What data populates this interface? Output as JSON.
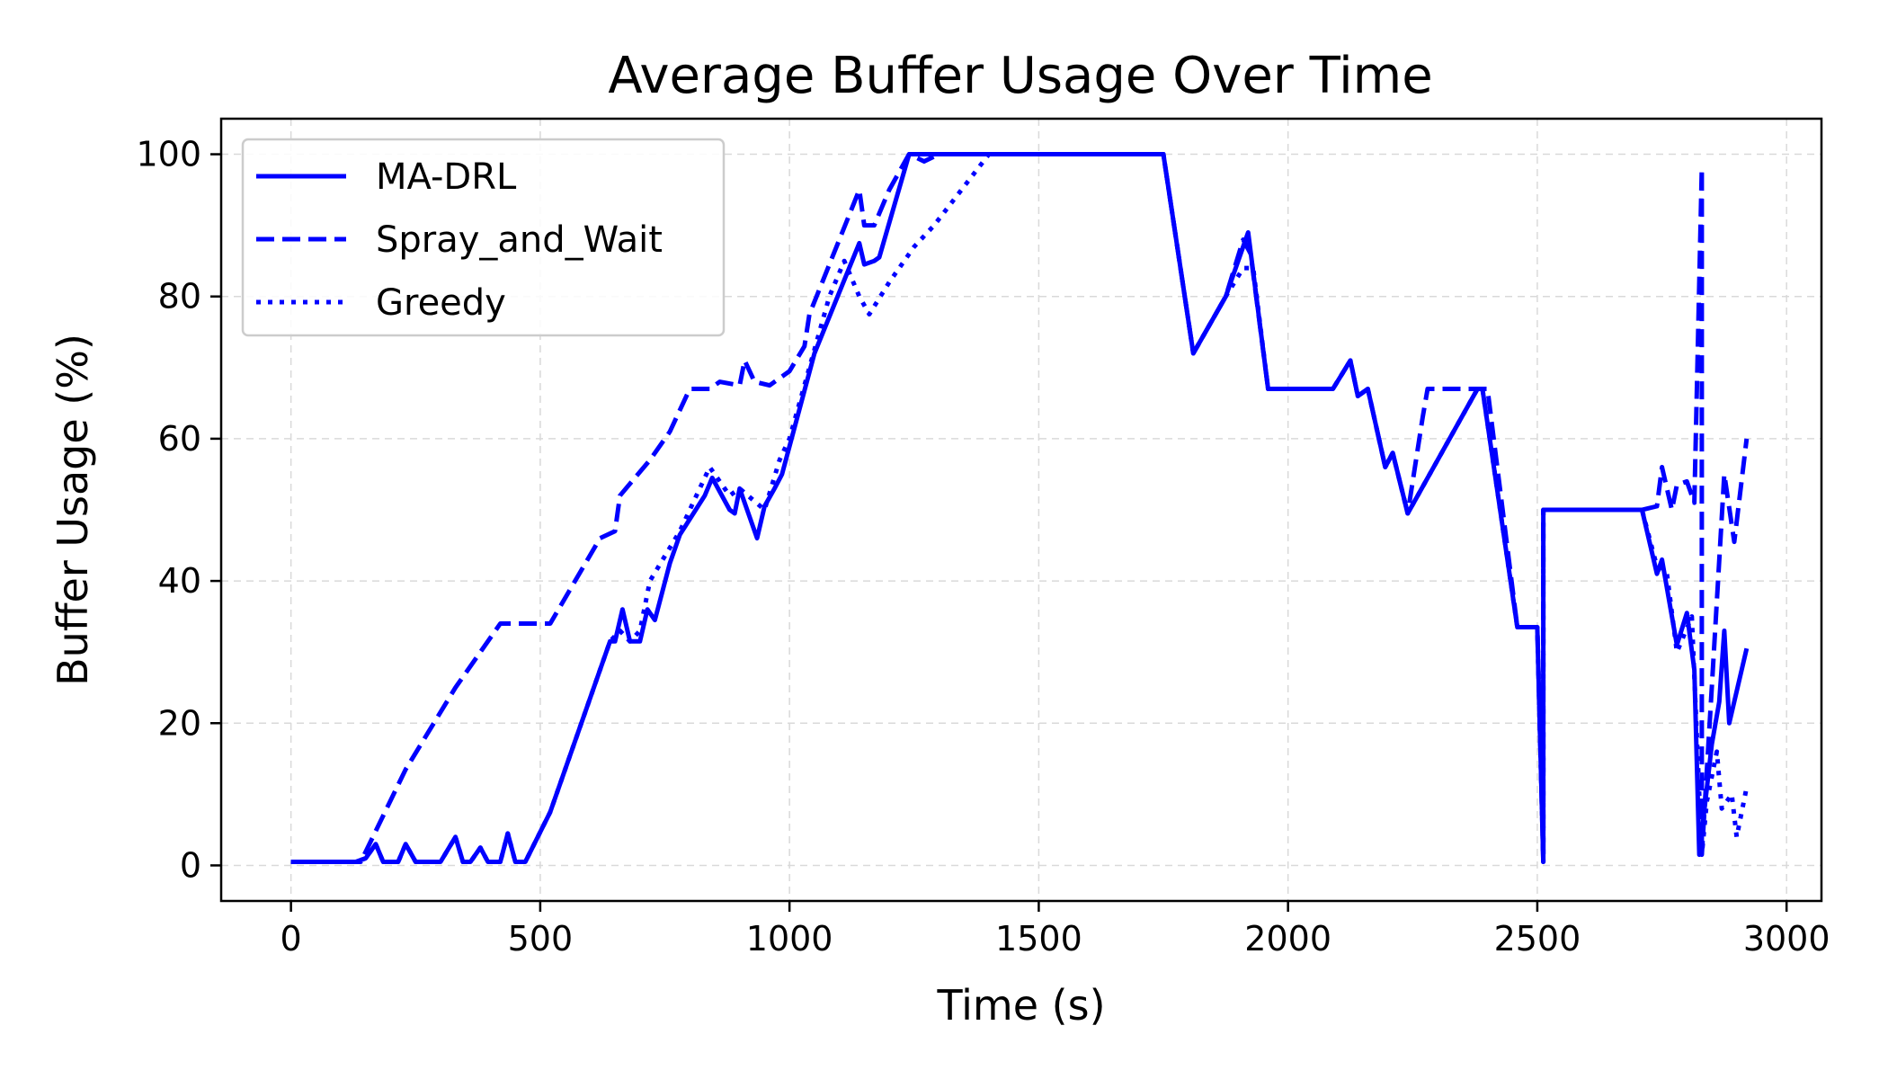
{
  "chart_data": {
    "type": "line",
    "title": "Average Buffer Usage Over Time",
    "xlabel": "Time (s)",
    "ylabel": "Buffer Usage (%)",
    "xlim": [
      -140,
      3070
    ],
    "ylim": [
      -5,
      105
    ],
    "xticks": [
      0,
      500,
      1000,
      1500,
      2000,
      2500,
      3000
    ],
    "yticks": [
      0,
      20,
      40,
      60,
      80,
      100
    ],
    "grid": true,
    "legend_position": "top-left",
    "color": "#0000ff",
    "series": [
      {
        "name": "MA-DRL",
        "style": "solid",
        "points": [
          [
            0,
            0.5
          ],
          [
            130,
            0.5
          ],
          [
            150,
            1
          ],
          [
            170,
            3
          ],
          [
            185,
            0.5
          ],
          [
            215,
            0.5
          ],
          [
            230,
            3
          ],
          [
            250,
            0.5
          ],
          [
            300,
            0.5
          ],
          [
            330,
            4
          ],
          [
            345,
            0.5
          ],
          [
            360,
            0.5
          ],
          [
            380,
            2.5
          ],
          [
            395,
            0.5
          ],
          [
            420,
            0.5
          ],
          [
            435,
            4.5
          ],
          [
            450,
            0.5
          ],
          [
            470,
            0.5
          ],
          [
            520,
            7.5
          ],
          [
            640,
            31.5
          ],
          [
            650,
            31.5
          ],
          [
            665,
            36
          ],
          [
            680,
            31.5
          ],
          [
            700,
            31.5
          ],
          [
            715,
            36
          ],
          [
            730,
            34.5
          ],
          [
            760,
            42.5
          ],
          [
            780,
            46.5
          ],
          [
            830,
            52
          ],
          [
            845,
            54.5
          ],
          [
            880,
            50
          ],
          [
            890,
            49.5
          ],
          [
            900,
            53
          ],
          [
            920,
            49
          ],
          [
            935,
            46
          ],
          [
            950,
            50.5
          ],
          [
            970,
            53
          ],
          [
            985,
            55
          ],
          [
            1050,
            72
          ],
          [
            1140,
            87.5
          ],
          [
            1150,
            84.5
          ],
          [
            1170,
            85
          ],
          [
            1180,
            85.5
          ],
          [
            1240,
            100
          ],
          [
            1750,
            100
          ],
          [
            1810,
            72
          ],
          [
            1875,
            80
          ],
          [
            1920,
            89
          ],
          [
            1940,
            78
          ],
          [
            1960,
            67
          ],
          [
            2090,
            67
          ],
          [
            2125,
            71
          ],
          [
            2140,
            66
          ],
          [
            2160,
            67
          ],
          [
            2195,
            56
          ],
          [
            2210,
            58
          ],
          [
            2240,
            49.5
          ],
          [
            2380,
            67
          ],
          [
            2390,
            67
          ],
          [
            2460,
            33.5
          ],
          [
            2500,
            33.5
          ],
          [
            2512,
            0.5
          ],
          [
            2512,
            50
          ],
          [
            2710,
            50
          ],
          [
            2740,
            41
          ],
          [
            2750,
            43
          ],
          [
            2780,
            31
          ],
          [
            2800,
            35.5
          ],
          [
            2815,
            27.5
          ],
          [
            2825,
            1.5
          ],
          [
            2850,
            17
          ],
          [
            2865,
            23
          ],
          [
            2875,
            33
          ],
          [
            2885,
            20
          ],
          [
            2920,
            30.5
          ]
        ]
      },
      {
        "name": "Spray_and_Wait",
        "style": "dashed",
        "points": [
          [
            0,
            0.5
          ],
          [
            140,
            0.5
          ],
          [
            230,
            13.5
          ],
          [
            330,
            25
          ],
          [
            420,
            34
          ],
          [
            520,
            34
          ],
          [
            620,
            46
          ],
          [
            650,
            47
          ],
          [
            660,
            52
          ],
          [
            720,
            57
          ],
          [
            760,
            61
          ],
          [
            800,
            67
          ],
          [
            840,
            67
          ],
          [
            860,
            68
          ],
          [
            900,
            67.5
          ],
          [
            910,
            71
          ],
          [
            930,
            68
          ],
          [
            960,
            67.5
          ],
          [
            1000,
            69.5
          ],
          [
            1030,
            73
          ],
          [
            1040,
            77.5
          ],
          [
            1100,
            88
          ],
          [
            1140,
            95
          ],
          [
            1150,
            90
          ],
          [
            1170,
            90
          ],
          [
            1200,
            95
          ],
          [
            1240,
            100
          ],
          [
            1270,
            99
          ],
          [
            1300,
            100
          ],
          [
            1750,
            100
          ],
          [
            1810,
            72
          ],
          [
            1875,
            80
          ],
          [
            1910,
            88
          ],
          [
            1925,
            86
          ],
          [
            1960,
            67
          ],
          [
            2090,
            67
          ],
          [
            2125,
            71
          ],
          [
            2140,
            66
          ],
          [
            2160,
            67
          ],
          [
            2195,
            56
          ],
          [
            2210,
            58
          ],
          [
            2240,
            49.5
          ],
          [
            2270,
            63
          ],
          [
            2280,
            67
          ],
          [
            2400,
            67
          ],
          [
            2460,
            33.5
          ],
          [
            2500,
            33.5
          ],
          [
            2512,
            0.5
          ],
          [
            2512,
            50
          ],
          [
            2710,
            50
          ],
          [
            2740,
            50.5
          ],
          [
            2750,
            56
          ],
          [
            2770,
            50
          ],
          [
            2780,
            53.5
          ],
          [
            2800,
            54
          ],
          [
            2815,
            51
          ],
          [
            2830,
            98
          ],
          [
            2830,
            1.5
          ],
          [
            2850,
            25
          ],
          [
            2875,
            55
          ],
          [
            2895,
            45.5
          ],
          [
            2920,
            60
          ]
        ]
      },
      {
        "name": "Greedy",
        "style": "dotted",
        "points": [
          [
            0,
            0.5
          ],
          [
            130,
            0.5
          ],
          [
            150,
            1
          ],
          [
            170,
            3
          ],
          [
            185,
            0.5
          ],
          [
            215,
            0.5
          ],
          [
            230,
            3
          ],
          [
            250,
            0.5
          ],
          [
            300,
            0.5
          ],
          [
            330,
            4
          ],
          [
            345,
            0.5
          ],
          [
            360,
            0.5
          ],
          [
            380,
            2.5
          ],
          [
            395,
            0.5
          ],
          [
            420,
            0.5
          ],
          [
            435,
            4.5
          ],
          [
            450,
            0.5
          ],
          [
            470,
            0.5
          ],
          [
            520,
            7.5
          ],
          [
            640,
            31.5
          ],
          [
            660,
            33
          ],
          [
            680,
            31.5
          ],
          [
            700,
            33
          ],
          [
            720,
            40
          ],
          [
            780,
            47
          ],
          [
            820,
            53
          ],
          [
            840,
            56
          ],
          [
            880,
            52
          ],
          [
            900,
            53
          ],
          [
            950,
            50
          ],
          [
            980,
            57
          ],
          [
            1000,
            60
          ],
          [
            1080,
            80
          ],
          [
            1110,
            85
          ],
          [
            1140,
            80
          ],
          [
            1160,
            77.5
          ],
          [
            1200,
            82
          ],
          [
            1250,
            87
          ],
          [
            1290,
            90
          ],
          [
            1400,
            100
          ],
          [
            1750,
            100
          ],
          [
            1810,
            72
          ],
          [
            1875,
            80
          ],
          [
            1910,
            84
          ],
          [
            1930,
            84
          ],
          [
            1960,
            67
          ],
          [
            2090,
            67
          ],
          [
            2125,
            71
          ],
          [
            2140,
            66
          ],
          [
            2160,
            67
          ],
          [
            2195,
            56
          ],
          [
            2210,
            58
          ],
          [
            2240,
            49.5
          ],
          [
            2380,
            67
          ],
          [
            2390,
            67
          ],
          [
            2460,
            33.5
          ],
          [
            2500,
            33.5
          ],
          [
            2512,
            0.5
          ],
          [
            2512,
            50
          ],
          [
            2710,
            50
          ],
          [
            2740,
            42
          ],
          [
            2760,
            41
          ],
          [
            2780,
            30
          ],
          [
            2810,
            35
          ],
          [
            2830,
            1.5
          ],
          [
            2840,
            9
          ],
          [
            2860,
            16
          ],
          [
            2870,
            8
          ],
          [
            2890,
            10
          ],
          [
            2900,
            4
          ],
          [
            2920,
            11
          ]
        ]
      }
    ]
  }
}
